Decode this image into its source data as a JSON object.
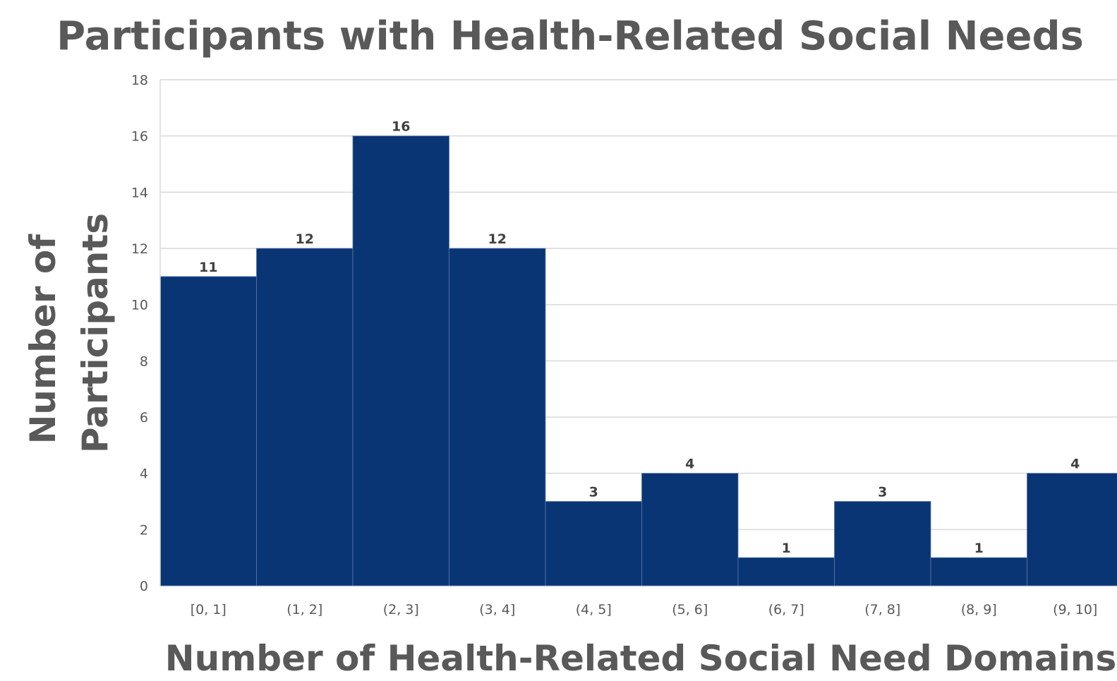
{
  "chart_data": {
    "type": "bar",
    "title": "Participants with Health-Related Social Needs",
    "xlabel": "Number of Health-Related Social Need Domains",
    "ylabel": [
      "Number of",
      "Participants"
    ],
    "categories": [
      "[0, 1]",
      "(1, 2]",
      "(2, 3]",
      "(3, 4]",
      "(4, 5]",
      "(5, 6]",
      "(6, 7]",
      "(7, 8]",
      "(8, 9]",
      "(9, 10]"
    ],
    "values": [
      11,
      12,
      16,
      12,
      3,
      4,
      1,
      3,
      1,
      4
    ],
    "ylim": [
      0,
      18
    ],
    "yticks": [
      0,
      2,
      4,
      6,
      8,
      10,
      12,
      14,
      16,
      18
    ],
    "grid": true,
    "legend": "none",
    "colors": {
      "bar": "#0A3574",
      "bar_edge": "#5a7aa8",
      "grid": "#d9d9d9",
      "text": "#595959"
    }
  }
}
